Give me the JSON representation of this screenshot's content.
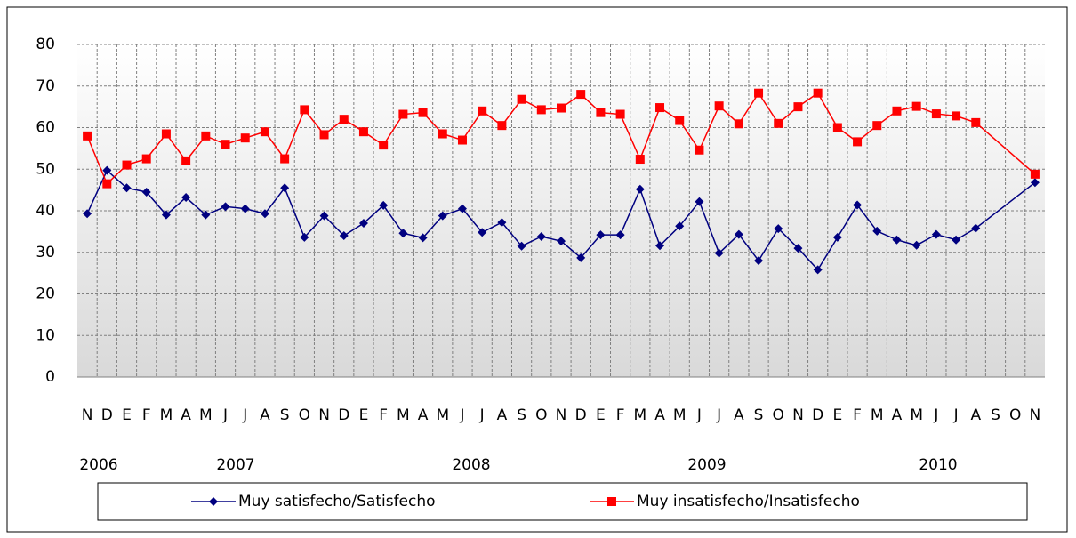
{
  "chart_data": {
    "type": "line",
    "categories": [
      "N",
      "D",
      "E",
      "F",
      "M",
      "A",
      "M",
      "J",
      "J",
      "A",
      "S",
      "O",
      "N",
      "D",
      "E",
      "F",
      "M",
      "A",
      "M",
      "J",
      "J",
      "A",
      "S",
      "O",
      "N",
      "D",
      "E",
      "F",
      "M",
      "A",
      "M",
      "J",
      "J",
      "A",
      "S",
      "O",
      "N",
      "D",
      "E",
      "F",
      "M",
      "A",
      "M",
      "J",
      "J",
      "A",
      "S",
      "O",
      "N"
    ],
    "year_labels": [
      "2006",
      "2007",
      "2008",
      "2009",
      "2010"
    ],
    "series": [
      {
        "name": "Muy satisfecho/Satisfecho",
        "color": "#000080",
        "marker": "diamond",
        "values": [
          39.3,
          49.7,
          45.5,
          44.5,
          39,
          43.2,
          39,
          41,
          40.5,
          39.3,
          45.5,
          33.6,
          38.8,
          34,
          37,
          41.3,
          34.6,
          33.5,
          38.8,
          40.5,
          34.8,
          37.2,
          31.5,
          33.8,
          32.7,
          28.7,
          34.2,
          34.2,
          45.2,
          31.6,
          36.3,
          42.2,
          29.8,
          34.3,
          28,
          35.7,
          31,
          25.8,
          33.6,
          41.4,
          35.1,
          33,
          31.7,
          34.3,
          33,
          35.8,
          null,
          null,
          46.8
        ]
      },
      {
        "name": "Muy insatisfecho/Insatisfecho",
        "color": "#ff0000",
        "marker": "square",
        "values": [
          58,
          46.5,
          51,
          52.5,
          58.5,
          52,
          58,
          56,
          57.5,
          59,
          52.5,
          64.3,
          58.3,
          62,
          59,
          55.8,
          63.2,
          63.6,
          58.5,
          57,
          64,
          60.5,
          66.8,
          64.3,
          64.7,
          68,
          63.6,
          63.2,
          52.4,
          64.8,
          61.7,
          54.6,
          65.2,
          60.9,
          68.3,
          61,
          65,
          68.3,
          60,
          56.6,
          60.5,
          64,
          65.1,
          63.3,
          62.8,
          61.2,
          null,
          null,
          48.8
        ]
      }
    ],
    "ylim": [
      0,
      80
    ],
    "yticks": [
      0,
      10,
      20,
      30,
      40,
      50,
      60,
      70,
      80
    ],
    "grid": true,
    "span_gaps": true,
    "legend": "bottom"
  }
}
